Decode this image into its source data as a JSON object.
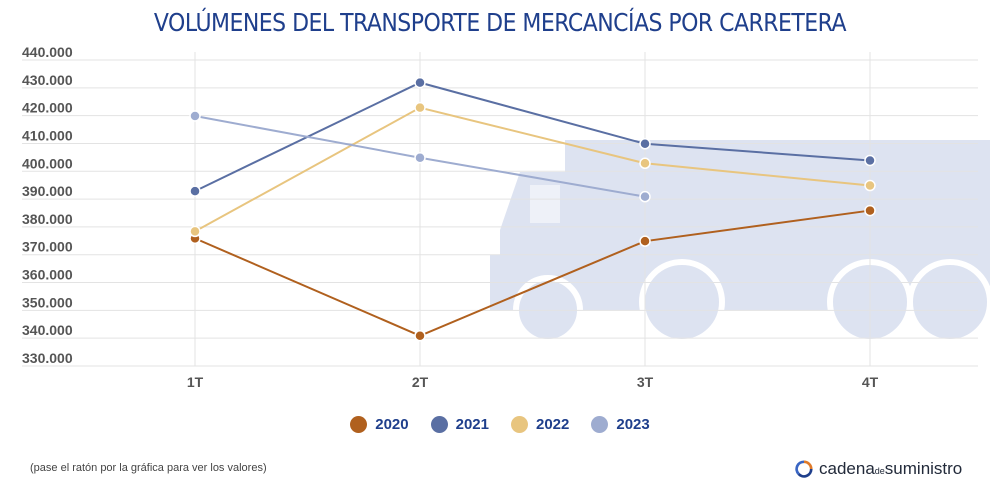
{
  "title": "VOLÚMENES DEL TRANSPORTE DE MERCANCÍAS POR CARRETERA",
  "footnote": "(pase el ratón por la gráfica para ver los valores)",
  "brand": {
    "part1": "cadena",
    "part2": "de",
    "part3": "suministro",
    "icon": "circular-arrows-icon"
  },
  "colors": {
    "2020": "#b0601e",
    "2021": "#5a6fa3",
    "2022": "#e8c57f",
    "2023": "#9eacd0",
    "grid": "#e3e3e3",
    "truck": "#dde3f1"
  },
  "chart_data": {
    "type": "line",
    "title": "VOLÚMENES DEL TRANSPORTE DE MERCANCÍAS POR CARRETERA",
    "categories": [
      "1T",
      "2T",
      "3T",
      "4T"
    ],
    "yticks": [
      "330.000",
      "340.000",
      "350.000",
      "360.000",
      "370.000",
      "380.000",
      "390.000",
      "400.000",
      "410.000",
      "420.000",
      "430.000",
      "440.000"
    ],
    "ylim": [
      330000,
      440000
    ],
    "grid": true,
    "legend_position": "bottom",
    "series": [
      {
        "name": "2020",
        "values": [
          373000,
          338000,
          372000,
          383000
        ]
      },
      {
        "name": "2021",
        "values": [
          390000,
          429000,
          407000,
          401000
        ]
      },
      {
        "name": "2022",
        "values": [
          375500,
          420000,
          400000,
          392000
        ]
      },
      {
        "name": "2023",
        "values": [
          417000,
          402000,
          388000,
          null
        ]
      }
    ]
  }
}
